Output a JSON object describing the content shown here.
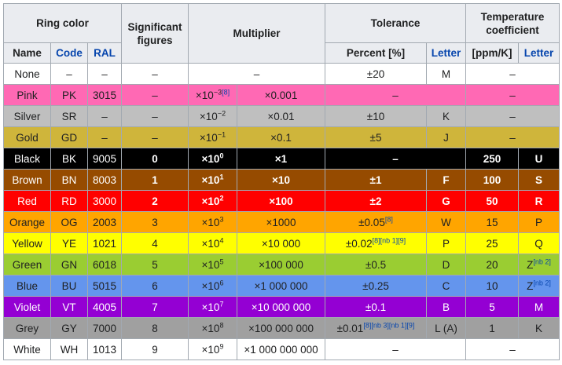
{
  "headers": {
    "ring_color": "Ring color",
    "significant_figures": "Significant figures",
    "multiplier": "Multiplier",
    "tolerance": "Tolerance",
    "temp_coefficient": "Temperature coefficient",
    "name": "Name",
    "code": "Code",
    "ral": "RAL",
    "percent": "Percent [%]",
    "letter": "Letter",
    "ppm": "[ppm/K]",
    "letter2": "Letter"
  },
  "rows": [
    {
      "name": "None",
      "code": "–",
      "ral": "–",
      "sig": "–",
      "mult": "–",
      "tol": "±20",
      "tol_ref": "",
      "tol_letter": "M",
      "ppm": "–",
      "ppm_letter": "",
      "ppm_letter_ref": "",
      "bg": "#ffffff",
      "fg": "#202122"
    },
    {
      "name": "Pink",
      "code": "PK",
      "ral": "3015",
      "sig": "–",
      "exp": "−3",
      "exp_ref": "[8]",
      "mult_val": "×0.001",
      "tol": "–",
      "tol_ref": "",
      "tol_letter": "",
      "ppm": "–",
      "ppm_letter": "",
      "ppm_letter_ref": "",
      "bg": "#ff69b4",
      "fg": "#202122"
    },
    {
      "name": "Silver",
      "code": "SR",
      "ral": "–",
      "sig": "–",
      "exp": "−2",
      "exp_ref": "",
      "mult_val": "×0.01",
      "tol": "±10",
      "tol_ref": "",
      "tol_letter": "K",
      "ppm": "–",
      "ppm_letter": "",
      "ppm_letter_ref": "",
      "bg": "#bfbfbf",
      "fg": "#202122"
    },
    {
      "name": "Gold",
      "code": "GD",
      "ral": "–",
      "sig": "–",
      "exp": "−1",
      "exp_ref": "",
      "mult_val": "×0.1",
      "tol": "±5",
      "tol_ref": "",
      "tol_letter": "J",
      "ppm": "–",
      "ppm_letter": "",
      "ppm_letter_ref": "",
      "bg": "#cfb53b",
      "fg": "#202122"
    },
    {
      "name": "Black",
      "code": "BK",
      "ral": "9005",
      "sig": "0",
      "exp": "0",
      "exp_ref": "",
      "mult_val": "×1",
      "tol": "–",
      "tol_ref": "",
      "tol_letter": "",
      "ppm": "250",
      "ppm_letter": "U",
      "ppm_letter_ref": "",
      "bg": "#000000",
      "fg": "#ffffff"
    },
    {
      "name": "Brown",
      "code": "BN",
      "ral": "8003",
      "sig": "1",
      "exp": "1",
      "exp_ref": "",
      "mult_val": "×10",
      "tol": "±1",
      "tol_ref": "",
      "tol_letter": "F",
      "ppm": "100",
      "ppm_letter": "S",
      "ppm_letter_ref": "",
      "bg": "#964b00",
      "fg": "#ffffff"
    },
    {
      "name": "Red",
      "code": "RD",
      "ral": "3000",
      "sig": "2",
      "exp": "2",
      "exp_ref": "",
      "mult_val": "×100",
      "tol": "±2",
      "tol_ref": "",
      "tol_letter": "G",
      "ppm": "50",
      "ppm_letter": "R",
      "ppm_letter_ref": "",
      "bg": "#ff0000",
      "fg": "#ffffff"
    },
    {
      "name": "Orange",
      "code": "OG",
      "ral": "2003",
      "sig": "3",
      "exp": "3",
      "exp_ref": "",
      "mult_val": "×1000",
      "tol": "±0.05",
      "tol_ref": "[8]",
      "tol_letter": "W",
      "ppm": "15",
      "ppm_letter": "P",
      "ppm_letter_ref": "",
      "bg": "#ffa500",
      "fg": "#202122"
    },
    {
      "name": "Yellow",
      "code": "YE",
      "ral": "1021",
      "sig": "4",
      "exp": "4",
      "exp_ref": "",
      "mult_val": "×10 000",
      "tol": "±0.02",
      "tol_ref": "[8][nb 1][9]",
      "tol_letter": "P",
      "ppm": "25",
      "ppm_letter": "Q",
      "ppm_letter_ref": "",
      "bg": "#ffff00",
      "fg": "#202122"
    },
    {
      "name": "Green",
      "code": "GN",
      "ral": "6018",
      "sig": "5",
      "exp": "5",
      "exp_ref": "",
      "mult_val": "×100 000",
      "tol": "±0.5",
      "tol_ref": "",
      "tol_letter": "D",
      "ppm": "20",
      "ppm_letter": "Z",
      "ppm_letter_ref": "[nb 2]",
      "bg": "#9acd32",
      "fg": "#202122"
    },
    {
      "name": "Blue",
      "code": "BU",
      "ral": "5015",
      "sig": "6",
      "exp": "6",
      "exp_ref": "",
      "mult_val": "×1 000 000",
      "tol": "±0.25",
      "tol_ref": "",
      "tol_letter": "C",
      "ppm": "10",
      "ppm_letter": "Z",
      "ppm_letter_ref": "[nb 2]",
      "bg": "#6495ed",
      "fg": "#202122"
    },
    {
      "name": "Violet",
      "code": "VT",
      "ral": "4005",
      "sig": "7",
      "exp": "7",
      "exp_ref": "",
      "mult_val": "×10 000 000",
      "tol": "±0.1",
      "tol_ref": "",
      "tol_letter": "B",
      "ppm": "5",
      "ppm_letter": "M",
      "ppm_letter_ref": "",
      "bg": "#9400d3",
      "fg": "#ffffff"
    },
    {
      "name": "Grey",
      "code": "GY",
      "ral": "7000",
      "sig": "8",
      "exp": "8",
      "exp_ref": "",
      "mult_val": "×100 000 000",
      "tol": "±0.01",
      "tol_ref": "[8][nb 3][nb 1][9]",
      "tol_letter": "L (A)",
      "ppm": "1",
      "ppm_letter": "K",
      "ppm_letter_ref": "",
      "bg": "#a0a0a0",
      "fg": "#202122"
    },
    {
      "name": "White",
      "code": "WH",
      "ral": "1013",
      "sig": "9",
      "exp": "9",
      "exp_ref": "",
      "mult_val": "×1 000 000 000",
      "tol": "–",
      "tol_ref": "",
      "tol_letter": "",
      "ppm": "–",
      "ppm_letter": "",
      "ppm_letter_ref": "",
      "bg": "#ffffff",
      "fg": "#202122"
    }
  ]
}
